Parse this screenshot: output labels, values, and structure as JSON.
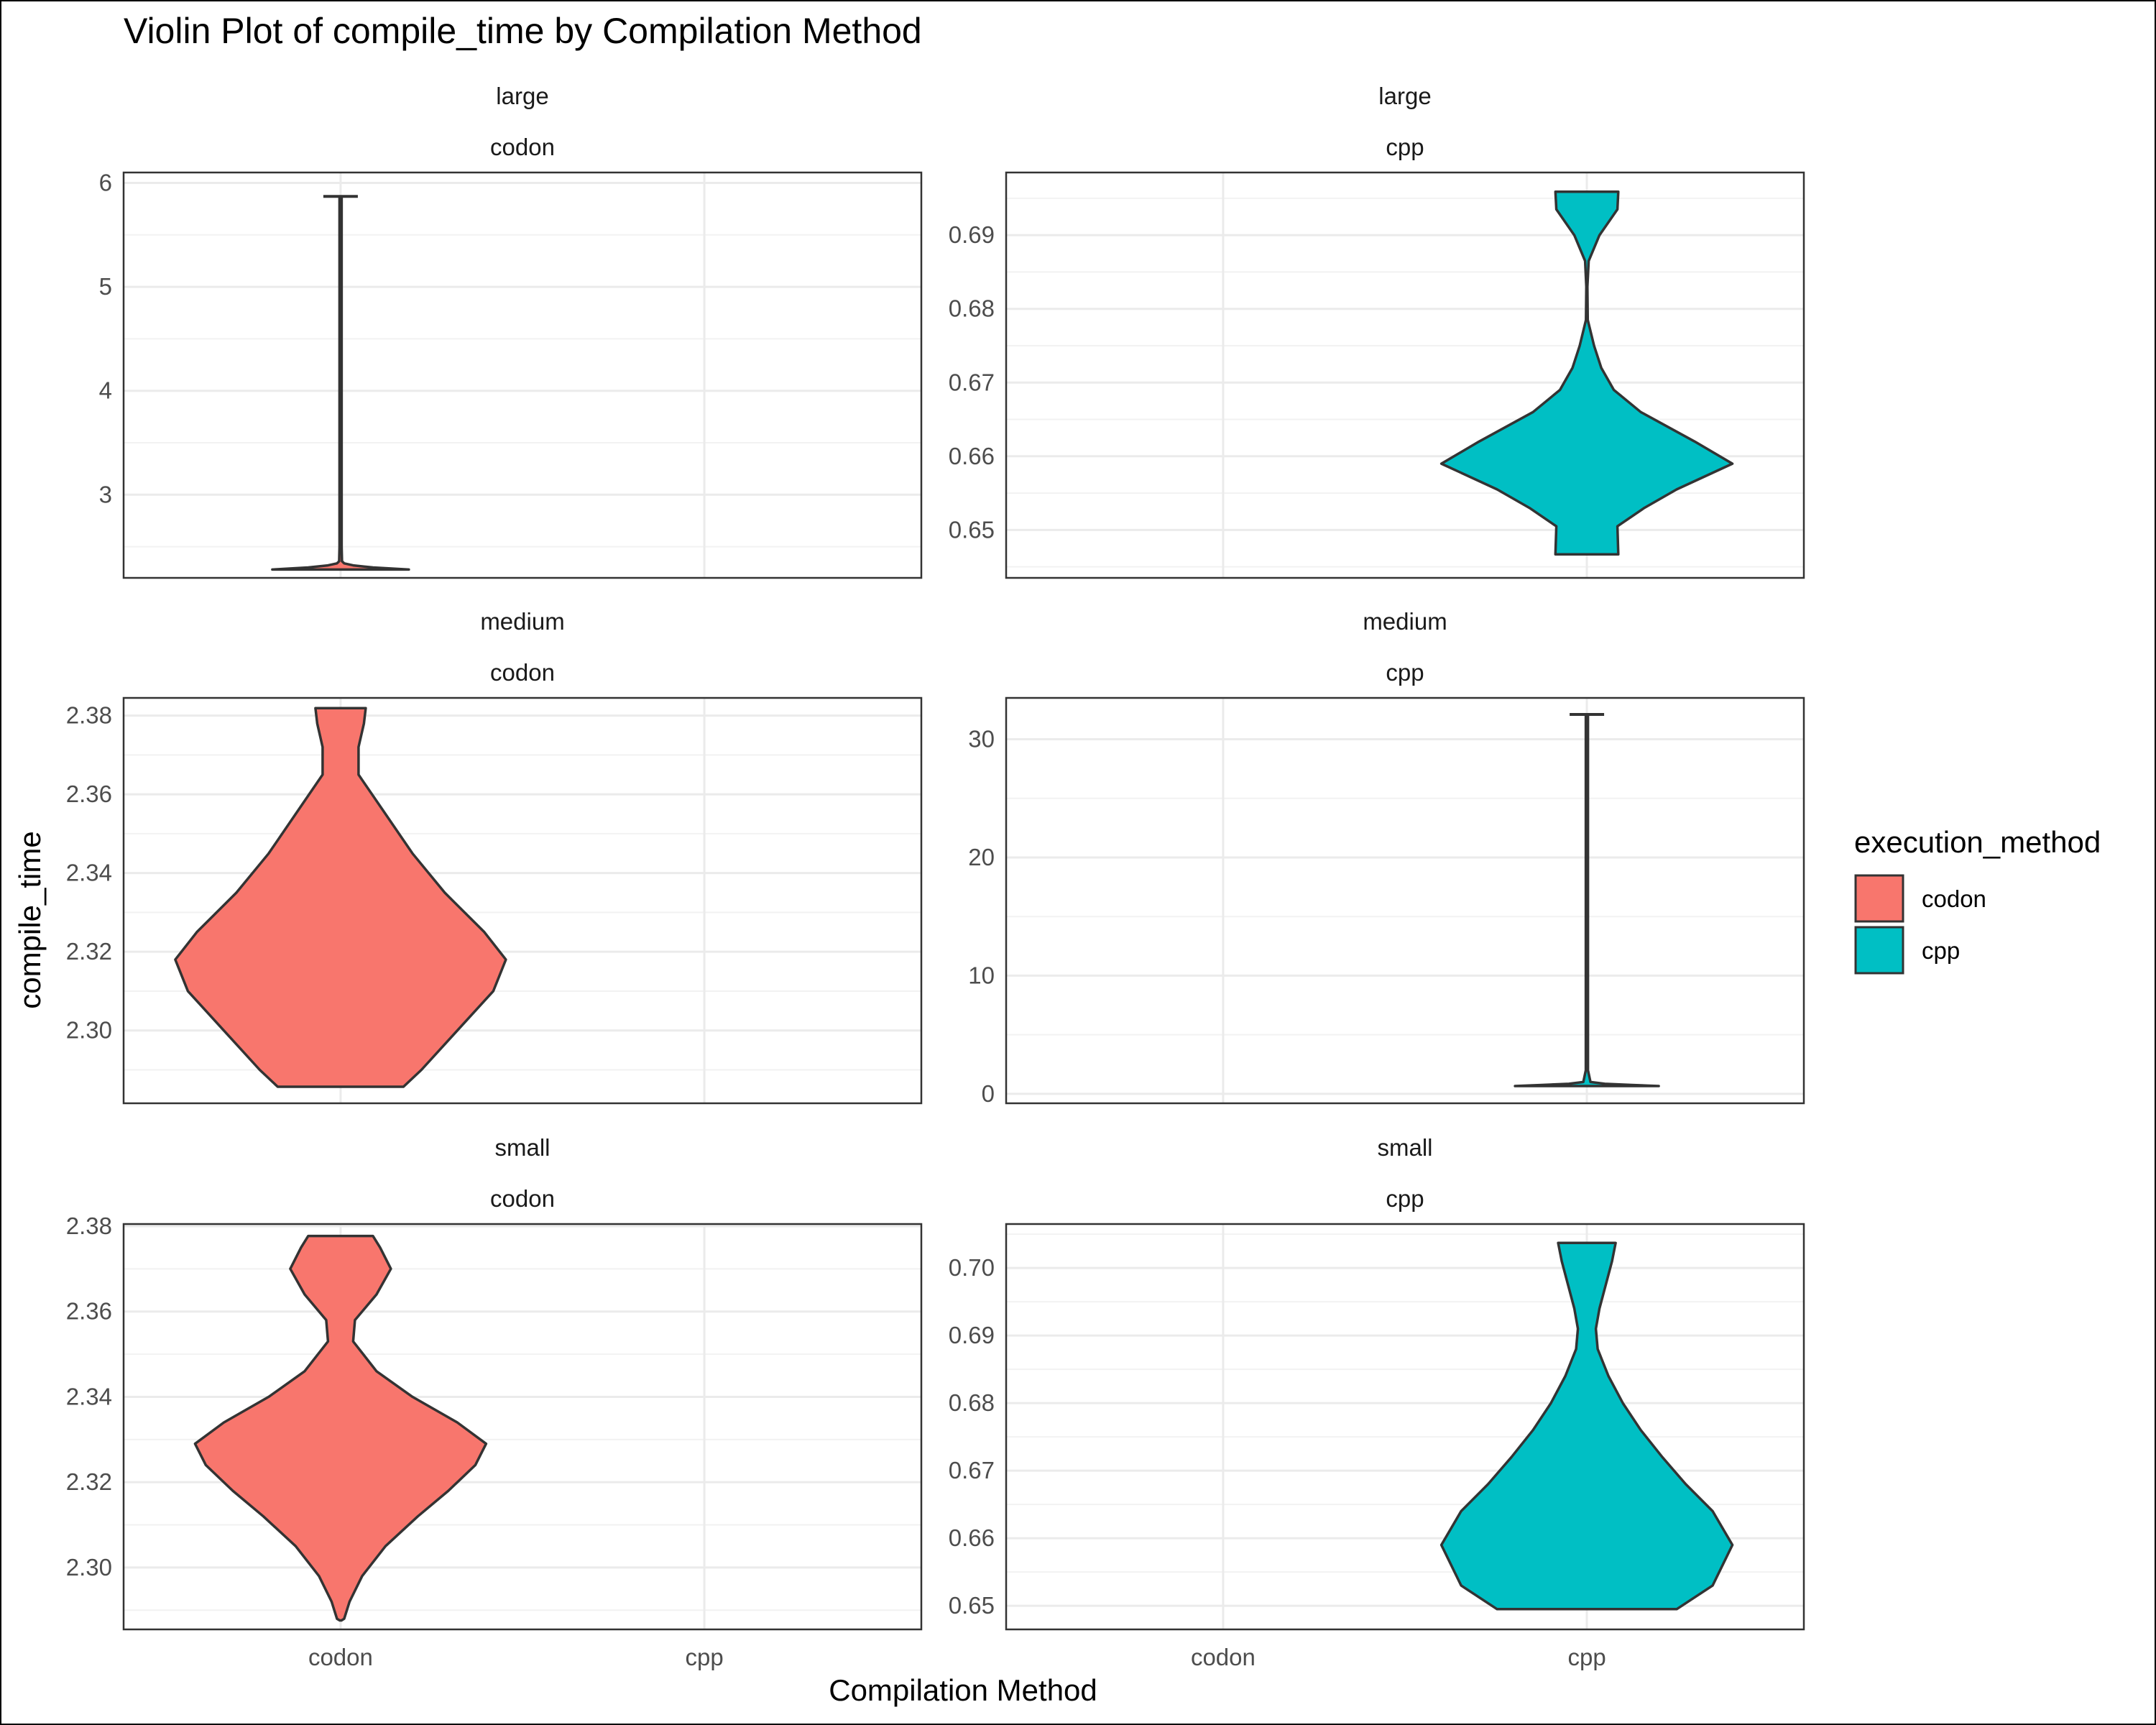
{
  "chart_data": {
    "type": "violin",
    "title": "Violin Plot of compile_time by Compilation Method",
    "xlabel": "Compilation Method",
    "ylabel": "compile_time",
    "categories": [
      "codon",
      "cpp"
    ],
    "grid": true,
    "legend": {
      "title": "execution_method",
      "position": "right",
      "entries": [
        {
          "label": "codon",
          "color": "#F8766D"
        },
        {
          "label": "cpp",
          "color": "#00BFC4"
        }
      ]
    },
    "panels": [
      {
        "strip": [
          "large",
          "codon"
        ],
        "method": "codon",
        "color": "#F8766D",
        "ylim": [
          2.2,
          6.1
        ],
        "yticks": [
          3,
          4,
          5,
          6
        ],
        "yticklabels": [
          "3",
          "4",
          "5",
          "6"
        ],
        "density": [
          [
            2.28,
            0.38
          ],
          [
            2.3,
            0.18
          ],
          [
            2.32,
            0.07
          ],
          [
            2.34,
            0.02
          ],
          [
            2.36,
            0.008
          ],
          [
            2.5,
            0.006
          ],
          [
            3.5,
            0.006
          ],
          [
            4.5,
            0.006
          ],
          [
            5.5,
            0.006
          ],
          [
            5.87,
            0.006
          ]
        ],
        "whisker_cap": 5.87
      },
      {
        "strip": [
          "large",
          "cpp"
        ],
        "method": "cpp",
        "color": "#00BFC4",
        "ylim": [
          0.6435,
          0.6985
        ],
        "yticks": [
          0.65,
          0.66,
          0.67,
          0.68,
          0.69
        ],
        "yticklabels": [
          "0.65",
          "0.66",
          "0.67",
          "0.68",
          "0.69"
        ],
        "density": [
          [
            0.6467,
            0.175
          ],
          [
            0.6505,
            0.17
          ],
          [
            0.653,
            0.32
          ],
          [
            0.6555,
            0.5
          ],
          [
            0.659,
            0.81
          ],
          [
            0.662,
            0.6
          ],
          [
            0.666,
            0.3
          ],
          [
            0.669,
            0.15
          ],
          [
            0.672,
            0.08
          ],
          [
            0.675,
            0.04
          ],
          [
            0.6785,
            0.005
          ],
          [
            0.683,
            0.003
          ],
          [
            0.6865,
            0.01
          ],
          [
            0.69,
            0.07
          ],
          [
            0.6935,
            0.17
          ],
          [
            0.6959,
            0.175
          ]
        ],
        "whisker_cap": null
      },
      {
        "strip": [
          "medium",
          "codon"
        ],
        "method": "codon",
        "color": "#F8766D",
        "ylim": [
          2.2815,
          2.3845
        ],
        "yticks": [
          2.3,
          2.32,
          2.34,
          2.36,
          2.38
        ],
        "yticklabels": [
          "2.30",
          "2.32",
          "2.34",
          "2.36",
          "2.38"
        ],
        "density": [
          [
            2.2857,
            0.35
          ],
          [
            2.29,
            0.45
          ],
          [
            2.3,
            0.65
          ],
          [
            2.31,
            0.85
          ],
          [
            2.318,
            0.92
          ],
          [
            2.325,
            0.8
          ],
          [
            2.335,
            0.58
          ],
          [
            2.345,
            0.4
          ],
          [
            2.355,
            0.25
          ],
          [
            2.365,
            0.1
          ],
          [
            2.372,
            0.1
          ],
          [
            2.378,
            0.13
          ],
          [
            2.3819,
            0.14
          ]
        ],
        "whisker_cap": null
      },
      {
        "strip": [
          "medium",
          "cpp"
        ],
        "method": "cpp",
        "color": "#00BFC4",
        "ylim": [
          -0.8,
          33.5
        ],
        "yticks": [
          0,
          10,
          20,
          30
        ],
        "yticklabels": [
          "0",
          "10",
          "20",
          "30"
        ],
        "density": [
          [
            0.66,
            0.4
          ],
          [
            0.75,
            0.25
          ],
          [
            0.85,
            0.1
          ],
          [
            1.0,
            0.02
          ],
          [
            2.0,
            0.006
          ],
          [
            10,
            0.006
          ],
          [
            20,
            0.006
          ],
          [
            30,
            0.006
          ],
          [
            32.1,
            0.006
          ]
        ],
        "whisker_cap": 32.1
      },
      {
        "strip": [
          "small",
          "codon"
        ],
        "method": "codon",
        "color": "#F8766D",
        "ylim": [
          2.2855,
          2.3805
        ],
        "yticks": [
          2.3,
          2.32,
          2.34,
          2.36,
          2.38
        ],
        "yticklabels": [
          "2.30",
          "2.32",
          "2.34",
          "2.36",
          "2.38"
        ],
        "density": [
          [
            2.2876,
            0.005
          ],
          [
            2.288,
            0.02
          ],
          [
            2.292,
            0.05
          ],
          [
            2.298,
            0.12
          ],
          [
            2.305,
            0.25
          ],
          [
            2.312,
            0.43
          ],
          [
            2.318,
            0.6
          ],
          [
            2.324,
            0.75
          ],
          [
            2.329,
            0.81
          ],
          [
            2.334,
            0.65
          ],
          [
            2.34,
            0.4
          ],
          [
            2.346,
            0.2
          ],
          [
            2.353,
            0.07
          ],
          [
            2.358,
            0.08
          ],
          [
            2.364,
            0.2
          ],
          [
            2.37,
            0.28
          ],
          [
            2.375,
            0.22
          ],
          [
            2.3777,
            0.18
          ]
        ],
        "whisker_cap": null
      },
      {
        "strip": [
          "small",
          "cpp"
        ],
        "method": "cpp",
        "color": "#00BFC4",
        "ylim": [
          0.6465,
          0.7065
        ],
        "yticks": [
          0.65,
          0.66,
          0.67,
          0.68,
          0.69,
          0.7
        ],
        "yticklabels": [
          "0.65",
          "0.66",
          "0.67",
          "0.68",
          "0.69",
          "0.70"
        ],
        "density": [
          [
            0.6495,
            0.5
          ],
          [
            0.653,
            0.7
          ],
          [
            0.659,
            0.81
          ],
          [
            0.664,
            0.7
          ],
          [
            0.668,
            0.55
          ],
          [
            0.672,
            0.42
          ],
          [
            0.676,
            0.3
          ],
          [
            0.68,
            0.2
          ],
          [
            0.684,
            0.12
          ],
          [
            0.688,
            0.06
          ],
          [
            0.691,
            0.05
          ],
          [
            0.694,
            0.07
          ],
          [
            0.698,
            0.11
          ],
          [
            0.701,
            0.14
          ],
          [
            0.7037,
            0.16
          ]
        ],
        "whisker_cap": null
      }
    ]
  }
}
